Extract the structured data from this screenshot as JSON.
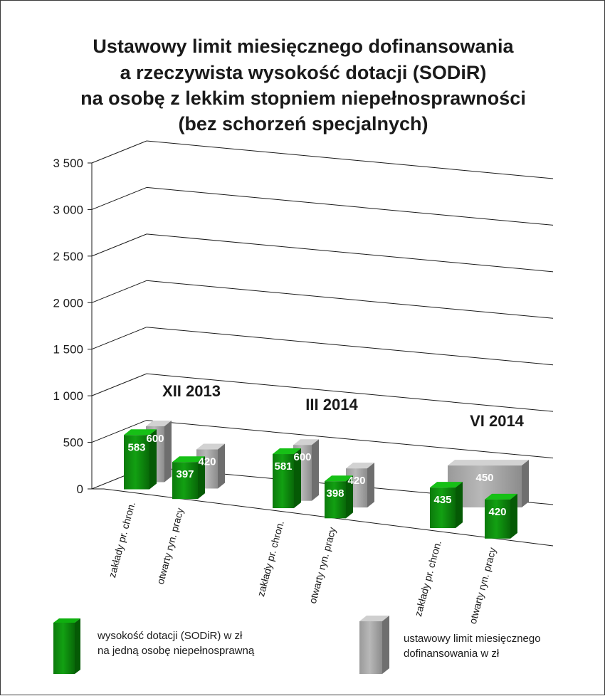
{
  "chart_data": {
    "type": "bar",
    "title": [
      "Ustawowy limit miesięcznego dofinansowania",
      "a rzeczywista wysokość dotacji (SODiR)",
      "na osobę z lekkim stopniem niepełnosprawności",
      "(bez schorzeń specjalnych)"
    ],
    "y_ticks": [
      "0",
      "500",
      "1 000",
      "1 500",
      "2 000",
      "2 500",
      "3 000",
      "3 500"
    ],
    "ylim": [
      0,
      3500
    ],
    "grid": true,
    "groups": [
      {
        "label": "XII 2013",
        "categories": [
          "zakłady pr. chron.",
          "otwarty ryn. pracy"
        ],
        "sodir": [
          583,
          397
        ],
        "limit": [
          600,
          420
        ]
      },
      {
        "label": "III 2014",
        "categories": [
          "zakłady pr. chron.",
          "otwarty ryn. pracy"
        ],
        "sodir": [
          581,
          398
        ],
        "limit": [
          600,
          420
        ]
      },
      {
        "label": "VI 2014",
        "categories": [
          "zakłady pr. chron.",
          "otwarty ryn. pracy"
        ],
        "sodir": [
          435,
          420
        ],
        "limit": [
          450
        ]
      }
    ],
    "series": [
      {
        "key": "sodir",
        "legend": [
          "wysokość dotacji (SODiR) w zł",
          "na jedną osobę niepełnosprawną"
        ],
        "color": "#0a8a0a"
      },
      {
        "key": "limit",
        "legend": [
          "ustawowy limit miesięcznego",
          "dofinansowania w zł"
        ],
        "color": "#a6a6a6"
      }
    ]
  }
}
